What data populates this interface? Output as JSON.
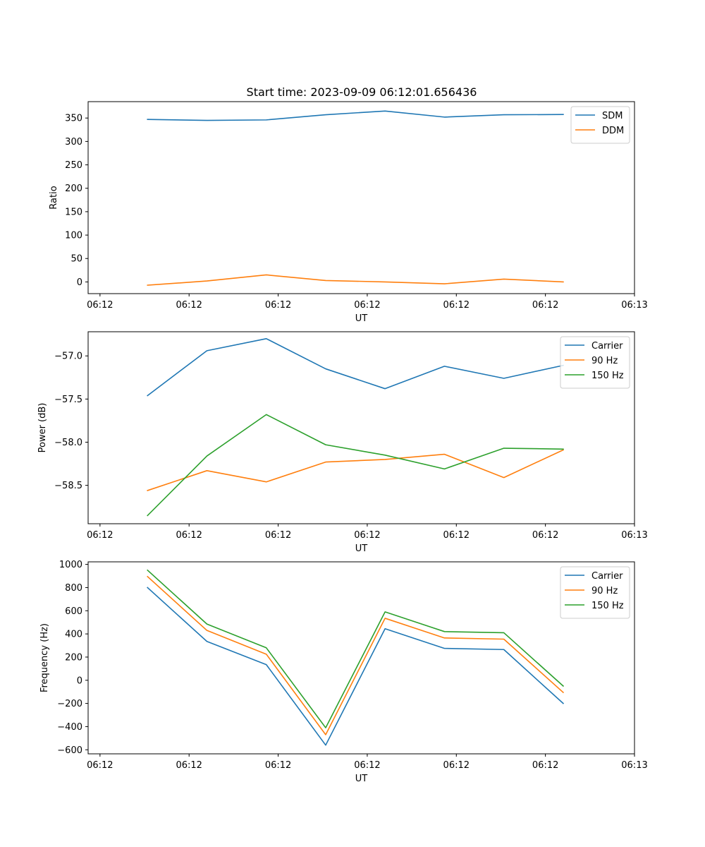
{
  "figure": {
    "title": "Start time: 2023-09-09 06:12:01.656436"
  },
  "chart_data": [
    {
      "type": "line",
      "title": "Start time: 2023-09-09 06:12:01.656436",
      "xlabel": "UT",
      "ylabel": "Ratio",
      "x": [
        1,
        2,
        3,
        4,
        5,
        6,
        7,
        8
      ],
      "xlim": [
        0,
        9.2
      ],
      "xticks": [
        0.2,
        1.7,
        3.2,
        4.7,
        6.2,
        7.7,
        9.2
      ],
      "xtick_labels": [
        "06:12",
        "06:12",
        "06:12",
        "06:12",
        "06:12",
        "06:12",
        "06:13"
      ],
      "ylim": [
        -25,
        385
      ],
      "yticks": [
        0,
        50,
        100,
        150,
        200,
        250,
        300,
        350
      ],
      "ytick_labels": [
        "0",
        "50",
        "100",
        "150",
        "200",
        "250",
        "300",
        "350"
      ],
      "legend_position": "top-right",
      "series": [
        {
          "name": "SDM",
          "color": "#1f77b4",
          "values": [
            347,
            345,
            346,
            357,
            365,
            352,
            357,
            357.5
          ]
        },
        {
          "name": "DDM",
          "color": "#ff7f0e",
          "values": [
            -7,
            2,
            15,
            3,
            0,
            -4,
            6,
            0
          ]
        }
      ]
    },
    {
      "type": "line",
      "title": "",
      "xlabel": "UT",
      "ylabel": "Power (dB)",
      "x": [
        1,
        2,
        3,
        4,
        5,
        6,
        7,
        8
      ],
      "xlim": [
        0,
        9.2
      ],
      "xticks": [
        0.2,
        1.7,
        3.2,
        4.7,
        6.2,
        7.7,
        9.2
      ],
      "xtick_labels": [
        "06:12",
        "06:12",
        "06:12",
        "06:12",
        "06:12",
        "06:12",
        "06:13"
      ],
      "ylim": [
        -58.945,
        -56.72
      ],
      "yticks": [
        -58.5,
        -58.0,
        -57.5,
        -57.0
      ],
      "ytick_labels": [
        "−58.5",
        "−58.0",
        "−57.5",
        "−57.0"
      ],
      "legend_position": "top-right",
      "series": [
        {
          "name": "Carrier",
          "color": "#1f77b4",
          "values": [
            -57.46,
            -56.94,
            -56.8,
            -57.15,
            -57.38,
            -57.12,
            -57.26,
            -57.11
          ]
        },
        {
          "name": "90 Hz",
          "color": "#ff7f0e",
          "values": [
            -58.56,
            -58.33,
            -58.46,
            -58.23,
            -58.2,
            -58.14,
            -58.41,
            -58.09
          ]
        },
        {
          "name": "150 Hz",
          "color": "#2ca02c",
          "values": [
            -58.85,
            -58.16,
            -57.68,
            -58.03,
            -58.15,
            -58.31,
            -58.07,
            -58.08
          ]
        }
      ]
    },
    {
      "type": "line",
      "title": "",
      "xlabel": "UT",
      "ylabel": "Frequency (Hz)",
      "x": [
        1,
        2,
        3,
        4,
        5,
        6,
        7,
        8
      ],
      "xlim": [
        0,
        9.2
      ],
      "xticks": [
        0.2,
        1.7,
        3.2,
        4.7,
        6.2,
        7.7,
        9.2
      ],
      "xtick_labels": [
        "06:12",
        "06:12",
        "06:12",
        "06:12",
        "06:12",
        "06:12",
        "06:13"
      ],
      "ylim": [
        -635,
        1022
      ],
      "yticks": [
        -600,
        -400,
        -200,
        0,
        200,
        400,
        600,
        800,
        1000
      ],
      "ytick_labels": [
        "−600",
        "−400",
        "−200",
        "0",
        "200",
        "400",
        "600",
        "800",
        "1000"
      ],
      "legend_position": "top-right",
      "series": [
        {
          "name": "Carrier",
          "color": "#1f77b4",
          "values": [
            800,
            335,
            135,
            -560,
            445,
            275,
            265,
            -200
          ]
        },
        {
          "name": "90 Hz",
          "color": "#ff7f0e",
          "values": [
            895,
            430,
            225,
            -470,
            535,
            365,
            355,
            -105
          ]
        },
        {
          "name": "150 Hz",
          "color": "#2ca02c",
          "values": [
            950,
            485,
            280,
            -410,
            590,
            420,
            410,
            -50
          ]
        }
      ]
    }
  ]
}
